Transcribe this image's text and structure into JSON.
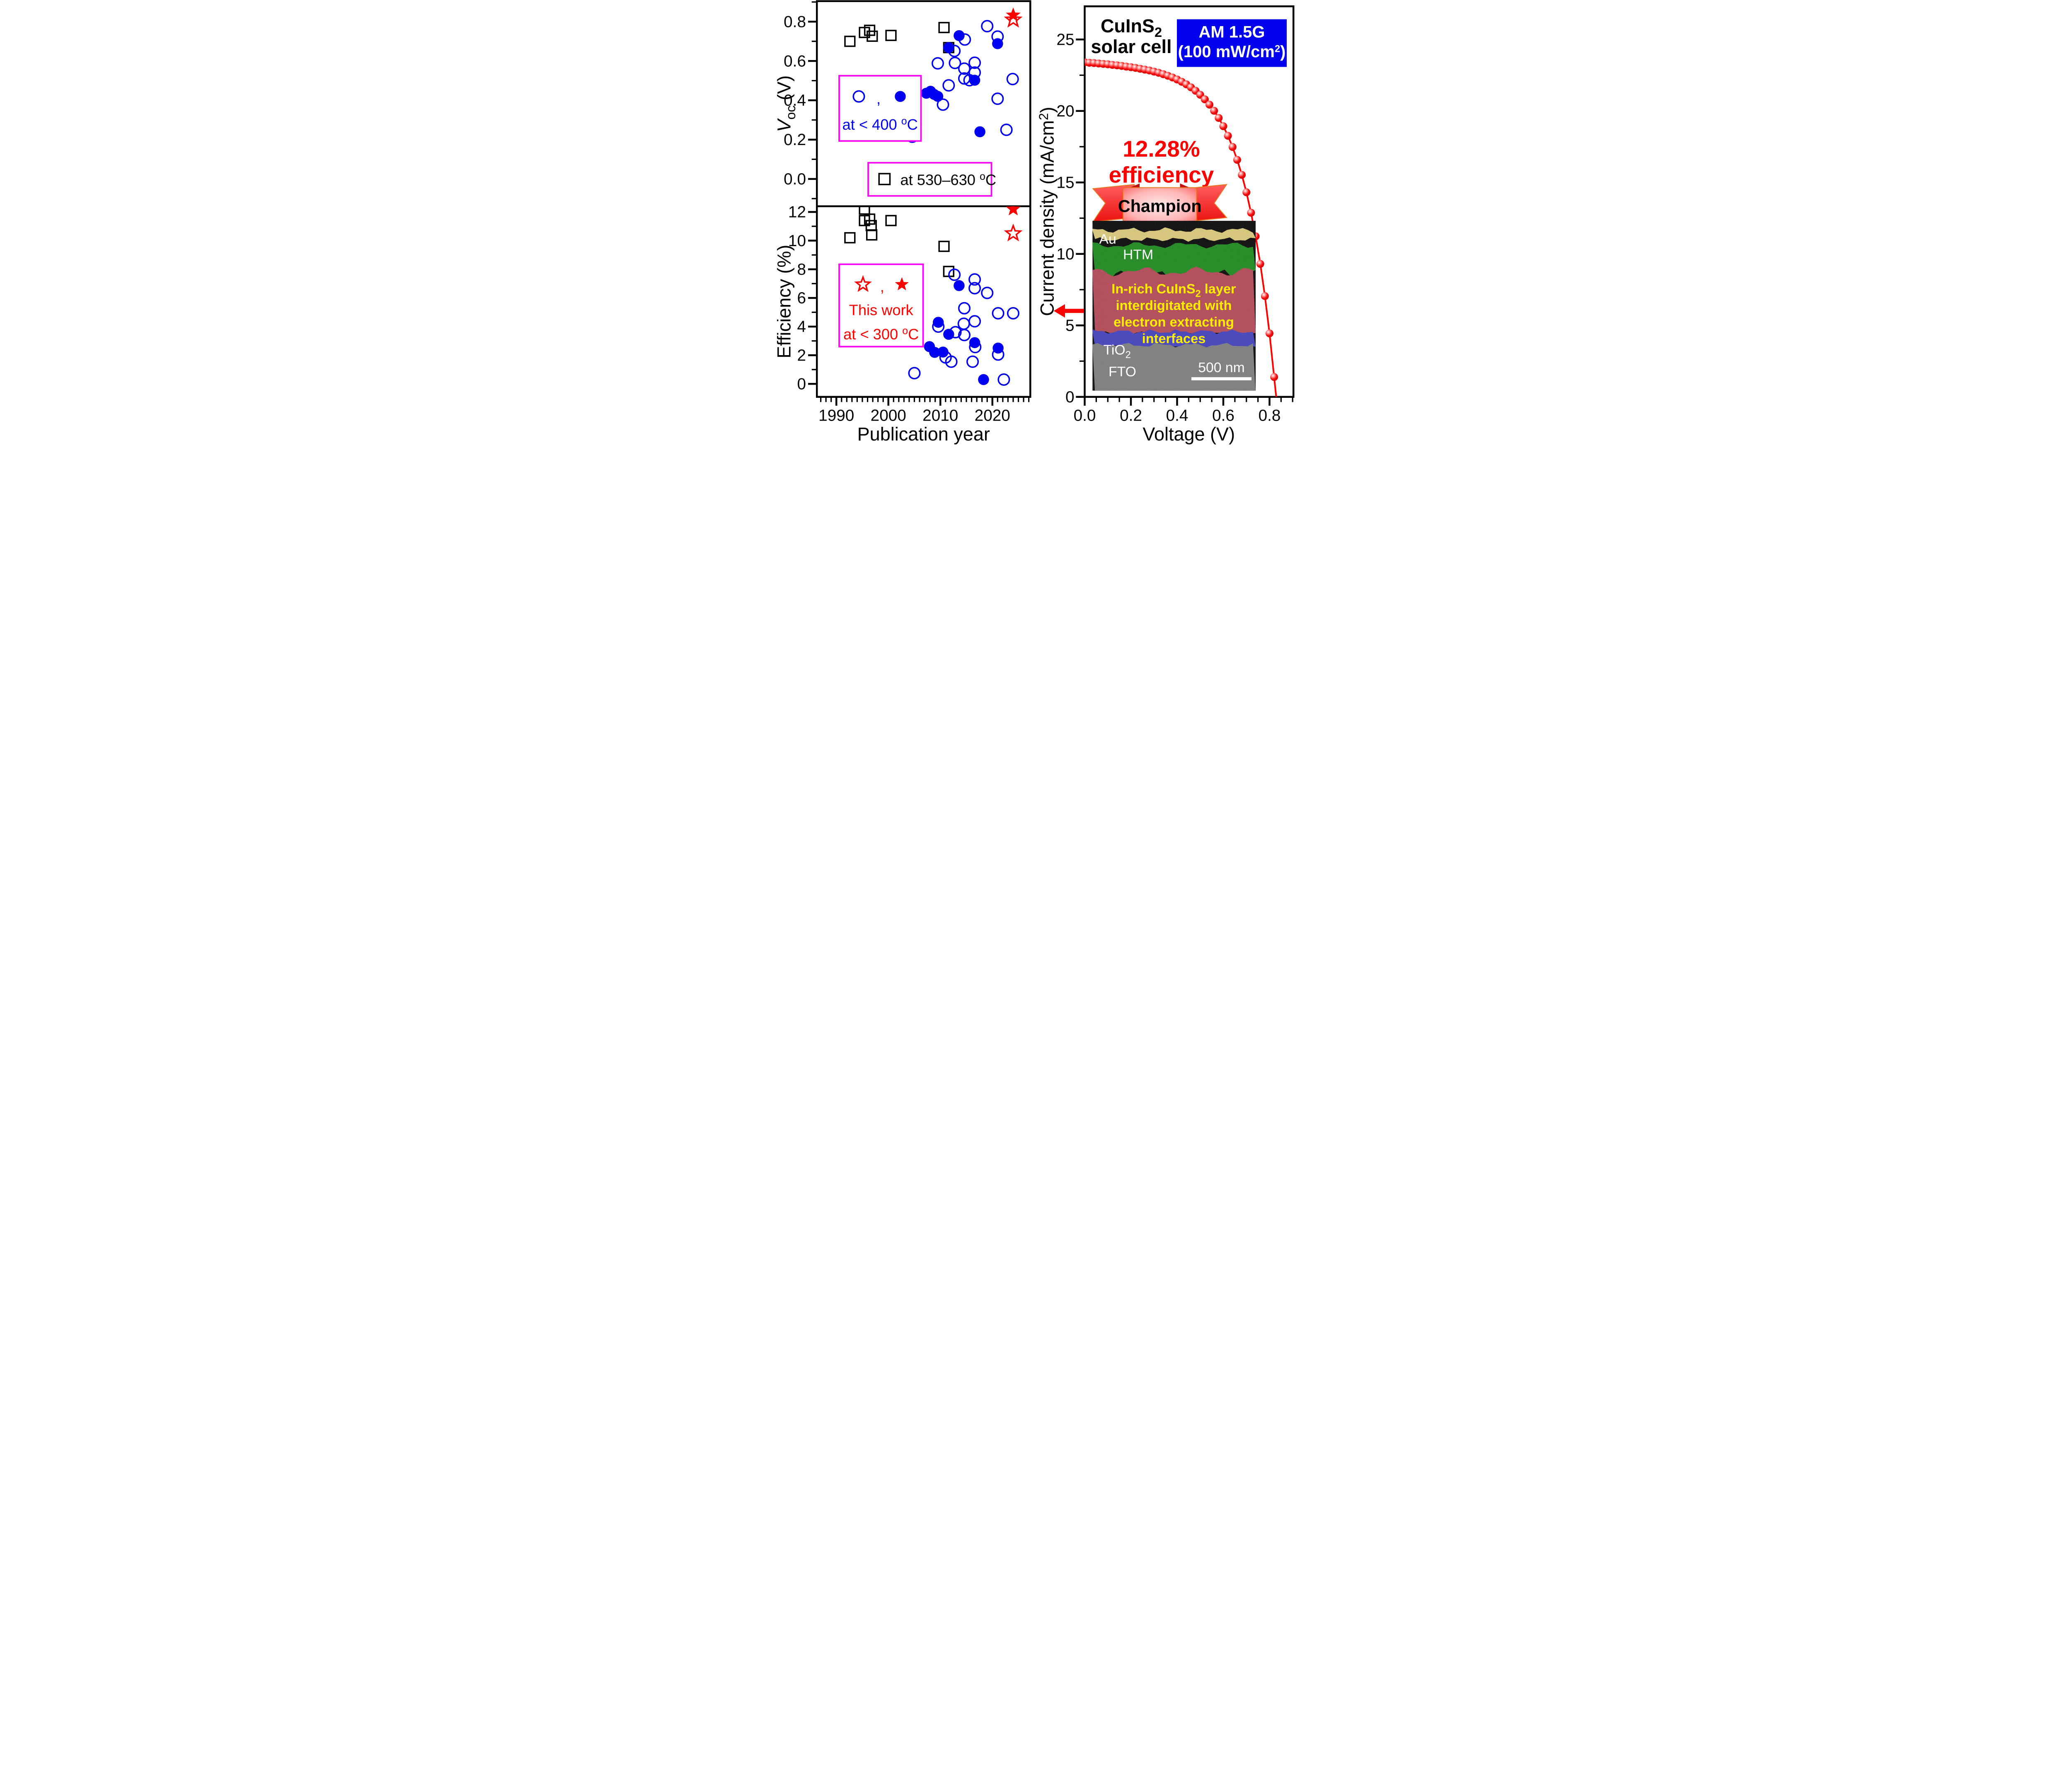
{
  "figure": {
    "left_panels": {
      "xlabel": "Publication year",
      "x_tick_labels": [
        "1990",
        "2000",
        "2010",
        "2020"
      ],
      "top": {
        "ylabel": {
          "pre": "V",
          "sub": "oc",
          "post": " (V)"
        },
        "y_tick_labels": [
          "0.0",
          "0.2",
          "0.4",
          "0.6",
          "0.8"
        ],
        "legend_low_temp": {
          "comma": ",",
          "line2a": "at < 400 ",
          "line2sup": "o",
          "line2b": "C"
        },
        "legend_high_temp": {
          "linea": "at 530–630 ",
          "linesup": "o",
          "lineb": "C"
        }
      },
      "bottom": {
        "ylabel": "Efficiency (%)",
        "y_tick_labels": [
          "0",
          "2",
          "4",
          "6",
          "8",
          "10",
          "12"
        ],
        "legend_this_work": {
          "comma": ",",
          "line1": "This work",
          "line2a": "at < 300 ",
          "line2sup": "o",
          "line2b": "C"
        }
      }
    },
    "right_panel": {
      "title1a": "CuInS",
      "title1sub": "2",
      "title2": "solar cell",
      "am_box": {
        "line1": "AM 1.5G",
        "line2a": "(100 mW/cm",
        "line2sup": "2",
        "line2b": ")"
      },
      "efficiency_line1": "12.28%",
      "efficiency_line2": "efficiency",
      "champion": "Champion",
      "xlabel": "Voltage (V)",
      "ylabel": {
        "a": "Current density (mA/cm",
        "sup": "2",
        "b": ")"
      },
      "x_tick_labels": [
        "0.0",
        "0.2",
        "0.4",
        "0.6",
        "0.8"
      ],
      "y_tick_labels": [
        "0",
        "5",
        "10",
        "15",
        "20",
        "25"
      ],
      "inset": {
        "au": "Au",
        "htm": "HTM",
        "layer1a": "In-rich CuInS",
        "layer1sub": "2",
        "layer1b": " layer",
        "layer2": "interdigitated with",
        "layer3": "electron extracting",
        "layer4": "interfaces",
        "tio2a": "TiO",
        "tio2sub": "2",
        "fto": "FTO",
        "scalebar": "500 nm"
      }
    },
    "colors": {
      "blue": "#0000f0",
      "red": "#ff0000",
      "magenta": "#ff00ff",
      "am_box_blue": "#0000ee"
    }
  },
  "chart_data": [
    {
      "id": "voc",
      "type": "scatter",
      "title": "",
      "xlabel": "Publication year",
      "ylabel": "Voc (V)",
      "xlim": [
        1986.3,
        2027.3
      ],
      "ylim": [
        -0.14,
        0.9
      ],
      "x_major_ticks": [
        1990,
        2000,
        2010,
        2020
      ],
      "x_minor_step": 1,
      "y_major_ticks": [
        0.0,
        0.2,
        0.4,
        0.6,
        0.8
      ],
      "y_minor_ticks": [
        -0.1,
        0.1,
        0.3,
        0.5,
        0.7,
        0.9
      ],
      "grid": false,
      "series": [
        {
          "name": "at 530-630 C",
          "marker": "open-square",
          "color": "#000000",
          "points": [
            [
              1992.6,
              0.7
            ],
            [
              1995.4,
              0.745
            ],
            [
              1996.4,
              0.756
            ],
            [
              1996.9,
              0.726
            ],
            [
              2000.5,
              0.73
            ],
            [
              2010.7,
              0.77
            ],
            [
              2011.6,
              0.668
            ]
          ]
        },
        {
          "name": "at < 400 C (open)",
          "marker": "open-circle",
          "color": "#0000f0",
          "points": [
            [
              2004.6,
              0.215
            ],
            [
              2009.5,
              0.588
            ],
            [
              2010.5,
              0.378
            ],
            [
              2011.6,
              0.476
            ],
            [
              2012.7,
              0.651
            ],
            [
              2012.8,
              0.59
            ],
            [
              2014.6,
              0.561
            ],
            [
              2014.7,
              0.709
            ],
            [
              2014.6,
              0.511
            ],
            [
              2015.6,
              0.502
            ],
            [
              2016.6,
              0.591
            ],
            [
              2016.6,
              0.541
            ],
            [
              2019.0,
              0.777
            ],
            [
              2021.0,
              0.724
            ],
            [
              2021.0,
              0.408
            ],
            [
              2022.7,
              0.25
            ],
            [
              2023.9,
              0.508
            ]
          ]
        },
        {
          "name": "at < 400 C (filled)",
          "marker": "filled-circle",
          "color": "#0000f0",
          "points": [
            [
              2007.3,
              0.436
            ],
            [
              2008.1,
              0.446
            ],
            [
              2008.8,
              0.43
            ],
            [
              2009.5,
              0.42
            ],
            [
              2011.6,
              0.668
            ],
            [
              2013.6,
              0.729
            ],
            [
              2016.6,
              0.502
            ],
            [
              2017.6,
              0.24
            ],
            [
              2021.0,
              0.688
            ]
          ]
        },
        {
          "name": "This work (open)",
          "marker": "open-star",
          "color": "#ff0000",
          "points": [
            [
              2024.0,
              0.81
            ]
          ]
        },
        {
          "name": "This work (filled)",
          "marker": "filled-star",
          "color": "#ff0000",
          "points": [
            [
              2024.0,
              0.833
            ]
          ]
        }
      ]
    },
    {
      "id": "eff",
      "type": "scatter",
      "title": "",
      "xlabel": "Publication year",
      "ylabel": "Efficiency (%)",
      "xlim": [
        1986.3,
        2027.3
      ],
      "ylim": [
        -0.9,
        12.4
      ],
      "x_major_ticks": [
        1990,
        2000,
        2010,
        2020
      ],
      "x_minor_step": 1,
      "y_major_ticks": [
        0,
        2,
        4,
        6,
        8,
        10,
        12
      ],
      "y_minor_ticks": [
        1,
        3,
        5,
        7,
        9,
        11
      ],
      "grid": false,
      "series": [
        {
          "name": "at 530-630 C",
          "marker": "open-square",
          "color": "#000000",
          "points": [
            [
              1992.6,
              10.2
            ],
            [
              1995.4,
              12.2
            ],
            [
              1995.4,
              11.4
            ],
            [
              1996.4,
              11.5
            ],
            [
              1996.7,
              11.05
            ],
            [
              1996.8,
              10.4
            ],
            [
              2000.5,
              11.4
            ],
            [
              2010.7,
              9.6
            ],
            [
              2011.6,
              7.85
            ]
          ]
        },
        {
          "name": "at < 400 C (open)",
          "marker": "open-circle",
          "color": "#0000f0",
          "points": [
            [
              2005.0,
              0.75
            ],
            [
              2012.7,
              7.62
            ],
            [
              2016.6,
              7.29
            ],
            [
              2016.6,
              6.68
            ],
            [
              2019.0,
              6.35
            ],
            [
              2014.6,
              5.28
            ],
            [
              2021.1,
              4.93
            ],
            [
              2024.0,
              4.93
            ],
            [
              2009.6,
              4.0
            ],
            [
              2014.5,
              4.2
            ],
            [
              2016.6,
              4.37
            ],
            [
              2012.9,
              3.61
            ],
            [
              2014.6,
              3.41
            ],
            [
              2016.7,
              2.57
            ],
            [
              2021.1,
              2.05
            ],
            [
              2011.0,
              1.85
            ],
            [
              2012.1,
              1.55
            ],
            [
              2016.2,
              1.55
            ],
            [
              2022.2,
              0.3
            ]
          ]
        },
        {
          "name": "at < 400 C (filled)",
          "marker": "filled-circle",
          "color": "#0000f0",
          "points": [
            [
              2007.9,
              2.6
            ],
            [
              2008.9,
              2.2
            ],
            [
              2009.6,
              4.3
            ],
            [
              2010.5,
              2.22
            ],
            [
              2011.6,
              3.46
            ],
            [
              2013.6,
              6.86
            ],
            [
              2016.6,
              2.88
            ],
            [
              2021.1,
              2.5
            ],
            [
              2018.3,
              0.3
            ]
          ]
        },
        {
          "name": "This work (open)",
          "marker": "open-star",
          "color": "#ff0000",
          "points": [
            [
              2024.0,
              10.5
            ]
          ]
        },
        {
          "name": "This work (filled)",
          "marker": "filled-star",
          "color": "#ff0000",
          "points": [
            [
              2024.0,
              12.2
            ]
          ]
        }
      ]
    },
    {
      "id": "jv",
      "type": "line-scatter",
      "title": "CuInS2 solar cell J-V curve, AM 1.5G (100 mW/cm2), 12.28% efficiency",
      "xlabel": "Voltage (V)",
      "ylabel": "Current density (mA/cm2)",
      "xlim": [
        0.0,
        0.9
      ],
      "ylim": [
        0.0,
        27.3
      ],
      "x_major_ticks": [
        0.0,
        0.2,
        0.4,
        0.6,
        0.8
      ],
      "x_minor_step": 0.05,
      "y_major_ticks": [
        0,
        5,
        10,
        15,
        20,
        25
      ],
      "y_minor_ticks": [
        2.5,
        7.5,
        12.5,
        17.5,
        22.5
      ],
      "grid": false,
      "voc_intercept": 0.829,
      "jsc": 23.4,
      "series": [
        {
          "name": "J-V",
          "marker": "sphere",
          "color": "#ff0000",
          "points": [
            [
              0.0,
              23.4
            ],
            [
              0.02,
              23.37
            ],
            [
              0.04,
              23.35
            ],
            [
              0.06,
              23.32
            ],
            [
              0.08,
              23.29
            ],
            [
              0.1,
              23.26
            ],
            [
              0.12,
              23.22
            ],
            [
              0.14,
              23.19
            ],
            [
              0.16,
              23.15
            ],
            [
              0.18,
              23.1
            ],
            [
              0.2,
              23.06
            ],
            [
              0.22,
              23.01
            ],
            [
              0.24,
              22.95
            ],
            [
              0.26,
              22.89
            ],
            [
              0.28,
              22.83
            ],
            [
              0.3,
              22.75
            ],
            [
              0.32,
              22.67
            ],
            [
              0.34,
              22.57
            ],
            [
              0.36,
              22.46
            ],
            [
              0.38,
              22.34
            ],
            [
              0.4,
              22.2
            ],
            [
              0.42,
              22.04
            ],
            [
              0.44,
              21.86
            ],
            [
              0.46,
              21.65
            ],
            [
              0.48,
              21.41
            ],
            [
              0.5,
              21.13
            ],
            [
              0.52,
              20.81
            ],
            [
              0.54,
              20.44
            ],
            [
              0.56,
              20.01
            ],
            [
              0.58,
              19.51
            ],
            [
              0.6,
              18.93
            ],
            [
              0.62,
              18.26
            ],
            [
              0.64,
              17.48
            ],
            [
              0.66,
              16.58
            ],
            [
              0.68,
              15.53
            ],
            [
              0.7,
              14.31
            ],
            [
              0.72,
              12.88
            ],
            [
              0.74,
              11.23
            ],
            [
              0.76,
              9.3
            ],
            [
              0.78,
              7.05
            ],
            [
              0.8,
              4.44
            ],
            [
              0.82,
              1.39
            ]
          ]
        }
      ]
    }
  ]
}
